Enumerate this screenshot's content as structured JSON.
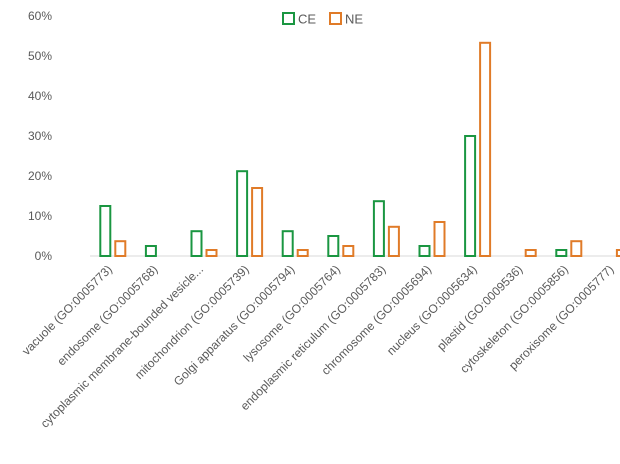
{
  "chart_data": {
    "type": "bar",
    "title": "",
    "xlabel": "",
    "ylabel": "",
    "ylim": [
      0,
      60
    ],
    "yticks": [
      "0%",
      "10%",
      "20%",
      "30%",
      "40%",
      "50%",
      "60%"
    ],
    "legend_position": "top-center",
    "grid": false,
    "categories": [
      "vacuole (GO:0005773)",
      "endosome (GO:0005768)",
      "cytoplasmic membrane-bounded vesicle...",
      "mitochondrion (GO:0005739)",
      "Golgi apparatus (GO:0005794)",
      "lysosome (GO:0005764)",
      "endoplasmic reticulum (GO:0005783)",
      "chromosome (GO:0005694)",
      "nucleus (GO:0005634)",
      "plastid (GO:0009536)",
      "cytoskeleton (GO:0005856)",
      "peroxisome (GO:0005777)"
    ],
    "series": [
      {
        "name": "CE",
        "color": "#1a9641",
        "values": [
          12.5,
          2.5,
          6.2,
          21.2,
          6.2,
          5.0,
          13.7,
          2.5,
          30.0,
          0,
          1.5,
          0
        ]
      },
      {
        "name": "NE",
        "color": "#e07b28",
        "values": [
          3.7,
          0,
          1.5,
          17.0,
          1.5,
          2.5,
          7.3,
          8.5,
          53.3,
          1.5,
          3.7,
          1.5
        ]
      }
    ]
  }
}
